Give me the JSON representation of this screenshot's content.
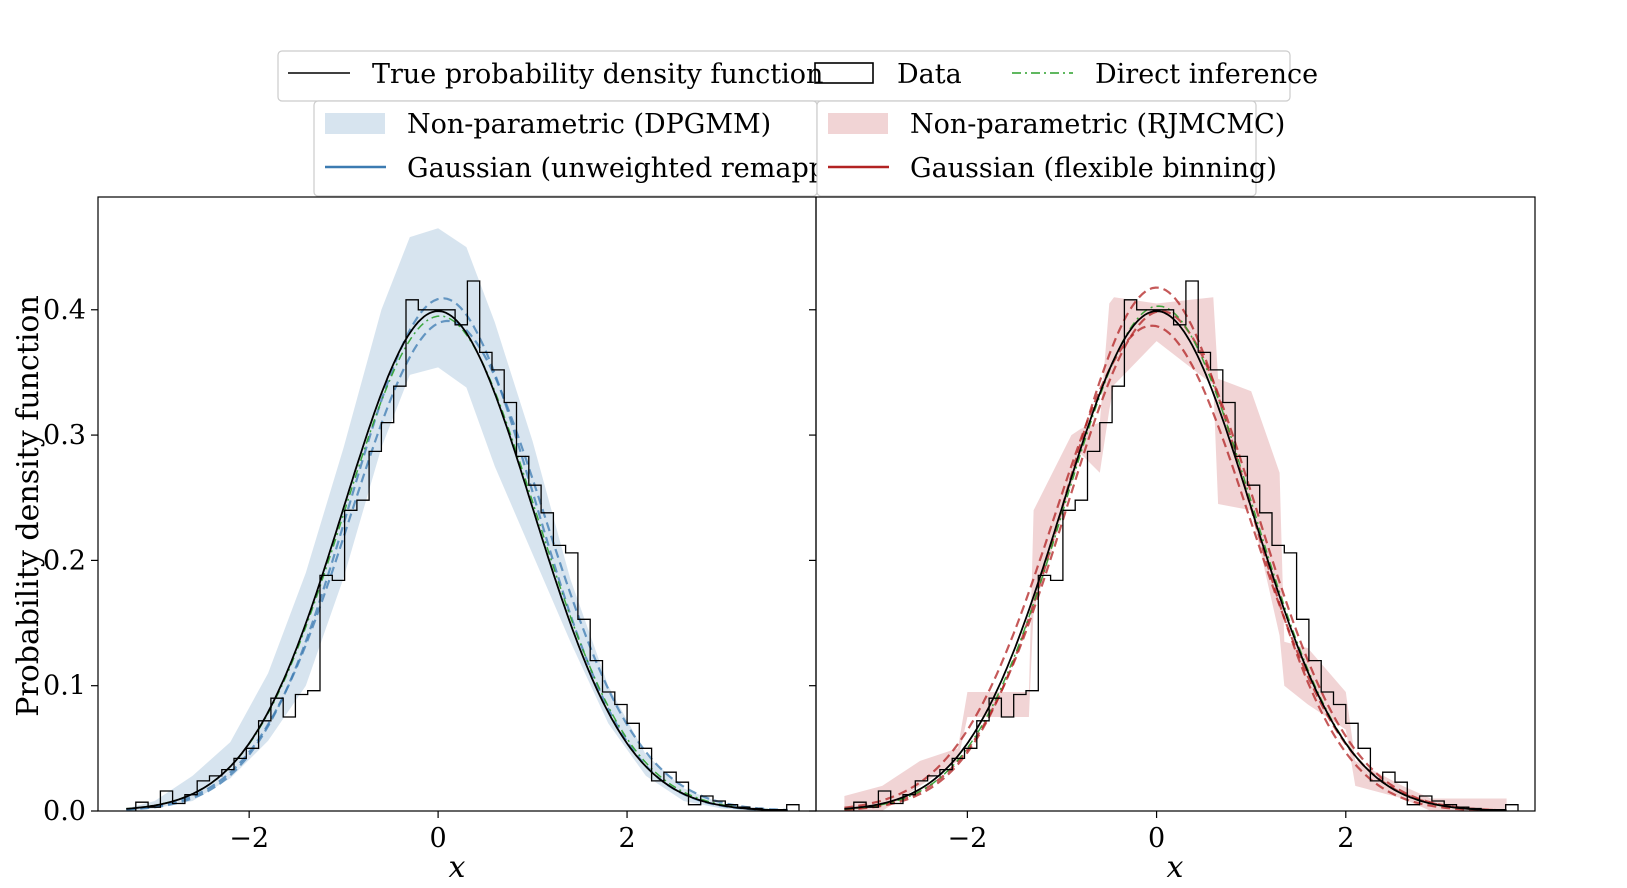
{
  "figure": {
    "ylabel": "Probability density function",
    "xlabel": "x"
  },
  "legend": {
    "top": [
      {
        "label": "True probability density function",
        "kind": "line",
        "color": "#000000"
      },
      {
        "label": "Data",
        "kind": "box",
        "color": "#000000"
      },
      {
        "label": "Direct inference",
        "kind": "dashdot",
        "color": "#2ca02c"
      }
    ],
    "left": [
      {
        "label": "Non-parametric (DPGMM)",
        "kind": "band",
        "color": "#a7c3dc"
      },
      {
        "label": "Gaussian (unweighted remapping)",
        "kind": "line",
        "color": "#3c7bb1"
      }
    ],
    "right": [
      {
        "label": "Non-parametric (RJMCMC)",
        "kind": "band",
        "color": "#e3a9ab"
      },
      {
        "label": "Gaussian (flexible binning)",
        "kind": "line",
        "color": "#b22222"
      }
    ]
  },
  "colors": {
    "blue_band": "#a7c3dc",
    "blue_line": "#3c7bb1",
    "red_band": "#e3a9ab",
    "red_line": "#b22222",
    "green": "#2ca02c"
  },
  "chart_data": [
    {
      "type": "line",
      "panel": "left",
      "title": "",
      "xlabel": "x",
      "ylabel": "Probability density function",
      "xlim": [
        -3.6,
        4.0
      ],
      "ylim": [
        0.0,
        0.49
      ],
      "xticks": [
        -2,
        0,
        2
      ],
      "xtick_labels": [
        "−2",
        "0",
        "2"
      ],
      "yticks": [
        0.0,
        0.1,
        0.2,
        0.3,
        0.4
      ],
      "ytick_labels": [
        "0.0",
        "0.1",
        "0.2",
        "0.3",
        "0.4"
      ],
      "true_pdf": {
        "name": "True probability density function",
        "mu": 0.0,
        "sigma": 1.0
      },
      "histogram": {
        "name": "Data",
        "bin_start": -3.2,
        "bin_width": 0.13,
        "values": [
          0.007,
          0.003,
          0.016,
          0.006,
          0.013,
          0.024,
          0.028,
          0.033,
          0.042,
          0.05,
          0.072,
          0.09,
          0.075,
          0.093,
          0.096,
          0.188,
          0.184,
          0.24,
          0.248,
          0.287,
          0.31,
          0.339,
          0.408,
          0.4,
          0.4,
          0.4,
          0.388,
          0.423,
          0.366,
          0.352,
          0.326,
          0.283,
          0.26,
          0.238,
          0.212,
          0.206,
          0.153,
          0.12,
          0.095,
          0.085,
          0.07,
          0.05,
          0.024,
          0.031,
          0.023,
          0.005,
          0.012,
          0.008,
          0.005,
          0.003,
          0.002,
          0.001,
          0.001,
          0.005
        ]
      },
      "band": {
        "name": "Non-parametric (DPGMM)",
        "x": [
          -3.3,
          -3.0,
          -2.6,
          -2.2,
          -1.8,
          -1.4,
          -1.0,
          -0.6,
          -0.3,
          0.0,
          0.3,
          0.6,
          1.0,
          1.4,
          1.8,
          2.2,
          2.6,
          3.0,
          3.4,
          3.7
        ],
        "lower": [
          0.0,
          0.002,
          0.008,
          0.026,
          0.056,
          0.1,
          0.186,
          0.29,
          0.348,
          0.354,
          0.338,
          0.275,
          0.205,
          0.135,
          0.07,
          0.028,
          0.008,
          0.002,
          0.0,
          0.0
        ],
        "upper": [
          0.002,
          0.008,
          0.028,
          0.055,
          0.11,
          0.19,
          0.29,
          0.4,
          0.458,
          0.465,
          0.45,
          0.39,
          0.295,
          0.185,
          0.1,
          0.045,
          0.018,
          0.006,
          0.002,
          0.001
        ]
      },
      "gaussian_lines": [
        {
          "name": "Gaussian (unweighted remapping)",
          "mu": 0.05,
          "sigma": 0.975,
          "style": "dashed"
        },
        {
          "name": "Gaussian (unweighted remapping)",
          "mu": 0.1,
          "sigma": 1.02,
          "style": "dashed"
        },
        {
          "name": "Direct inference",
          "mu": 0.02,
          "sigma": 1.01,
          "style": "dashdot"
        }
      ]
    },
    {
      "type": "line",
      "panel": "right",
      "title": "",
      "xlabel": "x",
      "ylabel": "",
      "xlim": [
        -3.6,
        4.0
      ],
      "ylim": [
        0.0,
        0.49
      ],
      "xticks": [
        -2,
        0,
        2
      ],
      "xtick_labels": [
        "−2",
        "0",
        "2"
      ],
      "yticks": [
        0.0,
        0.1,
        0.2,
        0.3,
        0.4
      ],
      "ytick_labels": [],
      "true_pdf": {
        "name": "True probability density function",
        "mu": 0.0,
        "sigma": 1.0
      },
      "histogram": {
        "name": "Data",
        "bin_start": -3.2,
        "bin_width": 0.13,
        "values": [
          0.007,
          0.003,
          0.016,
          0.006,
          0.013,
          0.024,
          0.028,
          0.033,
          0.042,
          0.05,
          0.072,
          0.09,
          0.075,
          0.093,
          0.096,
          0.188,
          0.184,
          0.24,
          0.248,
          0.287,
          0.31,
          0.339,
          0.408,
          0.4,
          0.4,
          0.4,
          0.388,
          0.423,
          0.366,
          0.352,
          0.326,
          0.283,
          0.26,
          0.238,
          0.212,
          0.206,
          0.153,
          0.12,
          0.095,
          0.085,
          0.07,
          0.05,
          0.024,
          0.031,
          0.023,
          0.005,
          0.012,
          0.008,
          0.005,
          0.003,
          0.002,
          0.001,
          0.001,
          0.005
        ]
      },
      "band": {
        "name": "Non-parametric (RJMCMC)",
        "x": [
          -3.3,
          -2.9,
          -2.5,
          -2.1,
          -2.0,
          -1.6,
          -1.35,
          -1.3,
          -0.9,
          -0.8,
          -0.6,
          -0.5,
          -0.45,
          0.0,
          0.6,
          0.65,
          1.0,
          1.3,
          1.35,
          1.6,
          2.0,
          2.1,
          2.6,
          2.9,
          3.7
        ],
        "lower": [
          0.0,
          0.0,
          0.02,
          0.04,
          0.075,
          0.075,
          0.075,
          0.16,
          0.26,
          0.285,
          0.27,
          0.32,
          0.34,
          0.375,
          0.34,
          0.245,
          0.24,
          0.14,
          0.1,
          0.085,
          0.065,
          0.02,
          0.01,
          0.0,
          0.0
        ],
        "upper": [
          0.012,
          0.02,
          0.04,
          0.05,
          0.095,
          0.095,
          0.095,
          0.24,
          0.3,
          0.305,
          0.31,
          0.405,
          0.41,
          0.405,
          0.41,
          0.345,
          0.335,
          0.27,
          0.135,
          0.13,
          0.095,
          0.04,
          0.02,
          0.01,
          0.01
        ]
      },
      "gaussian_lines": [
        {
          "name": "Gaussian (flexible binning)",
          "mu": 0.0,
          "sigma": 0.955,
          "style": "dashed"
        },
        {
          "name": "Gaussian (flexible binning)",
          "mu": 0.05,
          "sigma": 1.0,
          "style": "dashed"
        },
        {
          "name": "Gaussian (flexible binning)",
          "mu": -0.05,
          "sigma": 1.03,
          "style": "dashed"
        },
        {
          "name": "Direct inference",
          "mu": 0.02,
          "sigma": 0.99,
          "style": "dashdot"
        }
      ]
    }
  ]
}
